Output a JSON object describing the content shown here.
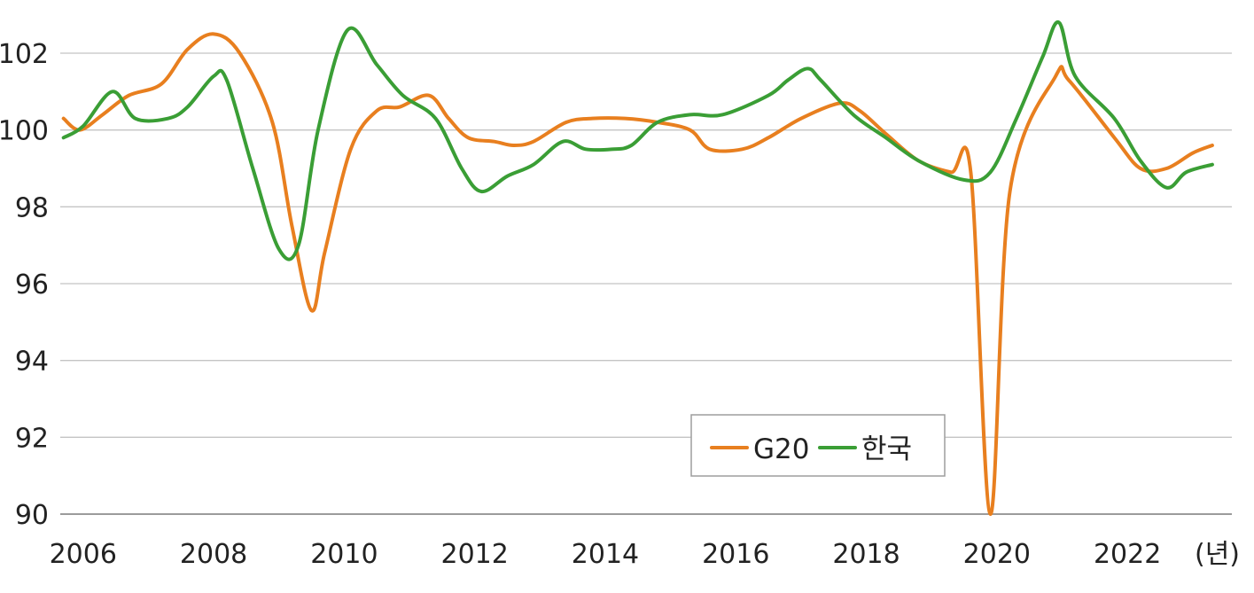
{
  "chart_data": {
    "type": "line",
    "title": "",
    "xlabel": "(년)",
    "ylabel": "",
    "xlim": [
      2005.65,
      2023.6
    ],
    "ylim": [
      90,
      103.2
    ],
    "grid": true,
    "legend_position": "bottom-right",
    "x_ticks": [
      2006,
      2008,
      2010,
      2012,
      2014,
      2016,
      2018,
      2020,
      2022
    ],
    "x_tick_labels": [
      "2006",
      "2008",
      "2010",
      "2012",
      "2014",
      "2016",
      "2018",
      "2020",
      "2022"
    ],
    "y_ticks": [
      90,
      92,
      94,
      96,
      98,
      100,
      102
    ],
    "y_tick_labels": [
      "90",
      "92",
      "94",
      "96",
      "98",
      "100",
      "102"
    ],
    "series": [
      {
        "name": "G20",
        "color": "#e87f1f",
        "points": [
          [
            2005.7,
            100.3
          ],
          [
            2005.95,
            100.0
          ],
          [
            2006.3,
            100.4
          ],
          [
            2006.7,
            100.9
          ],
          [
            2007.2,
            101.2
          ],
          [
            2007.6,
            102.1
          ],
          [
            2008.0,
            102.5
          ],
          [
            2008.4,
            102.0
          ],
          [
            2008.9,
            100.2
          ],
          [
            2009.2,
            97.5
          ],
          [
            2009.5,
            95.3
          ],
          [
            2009.7,
            96.8
          ],
          [
            2010.1,
            99.5
          ],
          [
            2010.5,
            100.5
          ],
          [
            2010.85,
            100.6
          ],
          [
            2011.3,
            100.9
          ],
          [
            2011.6,
            100.3
          ],
          [
            2011.9,
            99.8
          ],
          [
            2012.3,
            99.7
          ],
          [
            2012.6,
            99.6
          ],
          [
            2012.9,
            99.7
          ],
          [
            2013.4,
            100.2
          ],
          [
            2013.8,
            100.3
          ],
          [
            2014.3,
            100.3
          ],
          [
            2014.8,
            100.2
          ],
          [
            2015.3,
            100.0
          ],
          [
            2015.6,
            99.5
          ],
          [
            2016.1,
            99.5
          ],
          [
            2016.5,
            99.8
          ],
          [
            2017.0,
            100.3
          ],
          [
            2017.6,
            100.7
          ],
          [
            2017.9,
            100.5
          ],
          [
            2018.3,
            99.9
          ],
          [
            2018.8,
            99.2
          ],
          [
            2019.3,
            98.9
          ],
          [
            2019.6,
            98.9
          ],
          [
            2019.9,
            90.0
          ],
          [
            2020.2,
            98.4
          ],
          [
            2020.9,
            101.4
          ],
          [
            2021.1,
            101.3
          ],
          [
            2021.8,
            99.8
          ],
          [
            2022.2,
            99.0
          ],
          [
            2022.6,
            99.0
          ],
          [
            2023.0,
            99.4
          ],
          [
            2023.3,
            99.6
          ]
        ]
      },
      {
        "name": "한국",
        "color": "#3a9e35",
        "points": [
          [
            2005.7,
            99.8
          ],
          [
            2006.0,
            100.1
          ],
          [
            2006.45,
            101.0
          ],
          [
            2006.8,
            100.3
          ],
          [
            2007.3,
            100.3
          ],
          [
            2007.6,
            100.6
          ],
          [
            2008.0,
            101.4
          ],
          [
            2008.2,
            101.3
          ],
          [
            2008.6,
            99.0
          ],
          [
            2009.0,
            96.9
          ],
          [
            2009.3,
            97.0
          ],
          [
            2009.6,
            100.0
          ],
          [
            2010.05,
            102.6
          ],
          [
            2010.5,
            101.7
          ],
          [
            2010.9,
            100.9
          ],
          [
            2011.4,
            100.3
          ],
          [
            2011.8,
            99.0
          ],
          [
            2012.1,
            98.4
          ],
          [
            2012.5,
            98.8
          ],
          [
            2012.9,
            99.1
          ],
          [
            2013.35,
            99.7
          ],
          [
            2013.7,
            99.5
          ],
          [
            2014.1,
            99.5
          ],
          [
            2014.4,
            99.6
          ],
          [
            2014.8,
            100.2
          ],
          [
            2015.3,
            100.4
          ],
          [
            2015.8,
            100.4
          ],
          [
            2016.5,
            100.9
          ],
          [
            2016.8,
            101.3
          ],
          [
            2017.1,
            101.6
          ],
          [
            2017.3,
            101.3
          ],
          [
            2017.8,
            100.4
          ],
          [
            2018.3,
            99.8
          ],
          [
            2018.8,
            99.2
          ],
          [
            2019.5,
            98.7
          ],
          [
            2019.9,
            98.9
          ],
          [
            2020.3,
            100.3
          ],
          [
            2020.7,
            101.9
          ],
          [
            2020.95,
            102.8
          ],
          [
            2021.2,
            101.4
          ],
          [
            2021.8,
            100.3
          ],
          [
            2022.2,
            99.2
          ],
          [
            2022.6,
            98.5
          ],
          [
            2022.9,
            98.9
          ],
          [
            2023.3,
            99.1
          ]
        ]
      }
    ]
  }
}
